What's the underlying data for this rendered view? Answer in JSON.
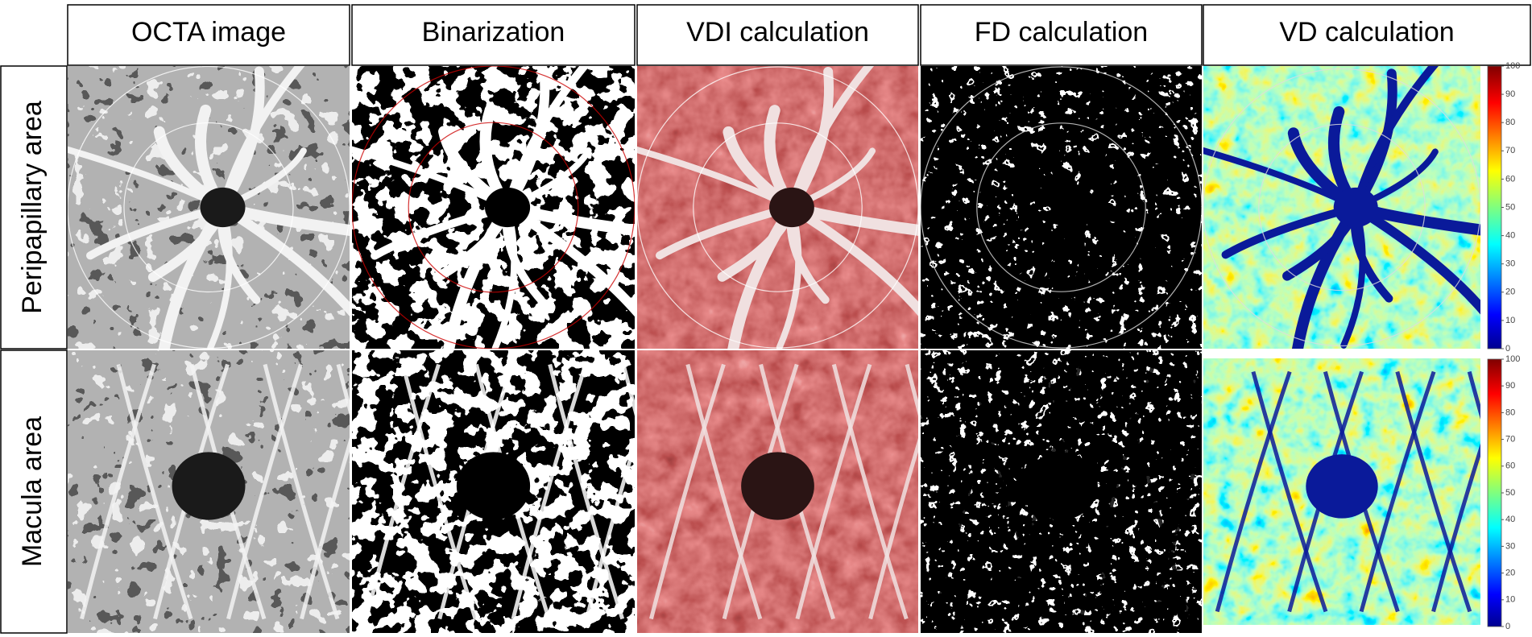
{
  "columns": [
    "OCTA image",
    "Binarization",
    "VDI calculation",
    "FD calculation",
    "VD calculation"
  ],
  "rows": [
    "Peripapillary area",
    "Macula area"
  ],
  "colorbars": [
    {
      "ticks": [
        0,
        10,
        20,
        30,
        40,
        50,
        60,
        70,
        80,
        90,
        100
      ]
    },
    {
      "ticks": [
        0,
        10,
        20,
        30,
        40,
        50,
        60,
        70,
        80,
        90,
        100
      ]
    }
  ]
}
